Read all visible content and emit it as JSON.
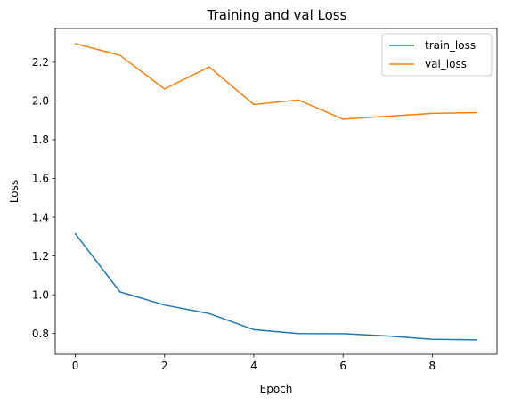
{
  "chart_data": {
    "type": "line",
    "title": "Training and val Loss",
    "xlabel": "Epoch",
    "ylabel": "Loss",
    "x": [
      0,
      1,
      2,
      3,
      4,
      5,
      6,
      7,
      8,
      9
    ],
    "xlim": [
      -0.45,
      9.45
    ],
    "ylim": [
      0.693,
      2.374
    ],
    "xticks": [
      0,
      2,
      4,
      6,
      8
    ],
    "yticks": [
      0.8,
      1.0,
      1.2,
      1.4,
      1.6,
      1.8,
      2.0,
      2.2
    ],
    "xtick_labels": [
      "0",
      "2",
      "4",
      "6",
      "8"
    ],
    "ytick_labels": [
      "0.8",
      "1.0",
      "1.2",
      "1.4",
      "1.6",
      "1.8",
      "2.0",
      "2.2"
    ],
    "grid": false,
    "legend_position": "top-right",
    "series": [
      {
        "name": "train_loss",
        "color": "#1f77b4",
        "values": [
          1.315,
          1.015,
          0.947,
          0.903,
          0.82,
          0.8,
          0.799,
          0.787,
          0.77,
          0.767
        ]
      },
      {
        "name": "val_loss",
        "color": "#ff7f0e",
        "values": [
          2.296,
          2.236,
          2.062,
          2.176,
          1.982,
          2.005,
          1.906,
          1.921,
          1.936,
          1.94
        ]
      }
    ]
  }
}
